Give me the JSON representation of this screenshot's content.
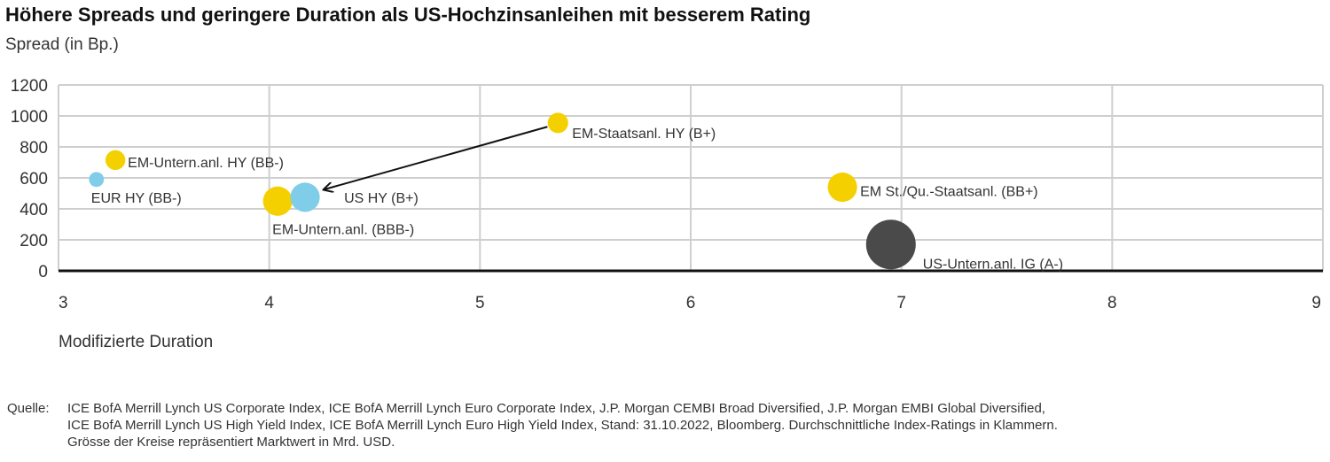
{
  "header": {
    "title": "Höhere Spreads und geringere Duration als US-Hochzinsanleihen mit besserem Rating"
  },
  "chart_data": {
    "type": "scatter",
    "title": "Höhere Spreads und geringere Duration als US-Hochzinsanleihen mit besserem Rating",
    "xlabel": "Modifizierte Duration",
    "ylabel": "Spread (in Bp.)",
    "xlim": [
      3,
      9
    ],
    "ylim": [
      0,
      1200
    ],
    "x_ticks": [
      "3",
      "4",
      "5",
      "6",
      "7",
      "8",
      "9"
    ],
    "y_ticks": [
      "0",
      "200",
      "400",
      "600",
      "800",
      "1000",
      "1200"
    ],
    "grid": true,
    "points": [
      {
        "label": "EM-Untern.anl. HY (BB-)",
        "x": 3.27,
        "y": 715,
        "color": "#f5d000",
        "market_value_rel": 0.16
      },
      {
        "label": "EUR HY (BB-)",
        "x": 3.18,
        "y": 590,
        "color": "#7fcde8",
        "market_value_rel": 0.09
      },
      {
        "label": "EM-Untern.anl. (BBB-)",
        "x": 4.04,
        "y": 450,
        "color": "#f5d000",
        "market_value_rel": 0.35
      },
      {
        "label": "US HY (B+)",
        "x": 4.17,
        "y": 475,
        "color": "#7fcde8",
        "market_value_rel": 0.35
      },
      {
        "label": "EM-Staatsanl. HY (B+)",
        "x": 5.37,
        "y": 955,
        "color": "#f5d000",
        "market_value_rel": 0.17
      },
      {
        "label": "EM St./Qu.-Staatsanl. (BB+)",
        "x": 6.72,
        "y": 540,
        "color": "#f5d000",
        "market_value_rel": 0.35
      },
      {
        "label": "US-Untern.anl. IG (A-)",
        "x": 6.95,
        "y": 170,
        "color": "#4a4a4a",
        "market_value_rel": 1.0
      }
    ],
    "annotations": [
      {
        "type": "arrow",
        "from": {
          "x": 5.32,
          "y": 930
        },
        "to": {
          "x": 4.26,
          "y": 525
        }
      }
    ]
  },
  "source": {
    "label": "Quelle:",
    "lines": [
      "ICE BofA Merrill Lynch US Corporate Index, ICE BofA Merrill Lynch Euro Corporate Index, J.P. Morgan CEMBI Broad Diversified, J.P. Morgan EMBI Global Diversified,",
      "ICE BofA Merrill Lynch US High Yield Index, ICE BofA Merrill Lynch Euro High Yield Index, Stand: 31.10.2022, Bloomberg. Durchschnittliche Index-Ratings in Klammern.",
      "Grösse der Kreise repräsentiert Marktwert in Mrd. USD."
    ]
  }
}
